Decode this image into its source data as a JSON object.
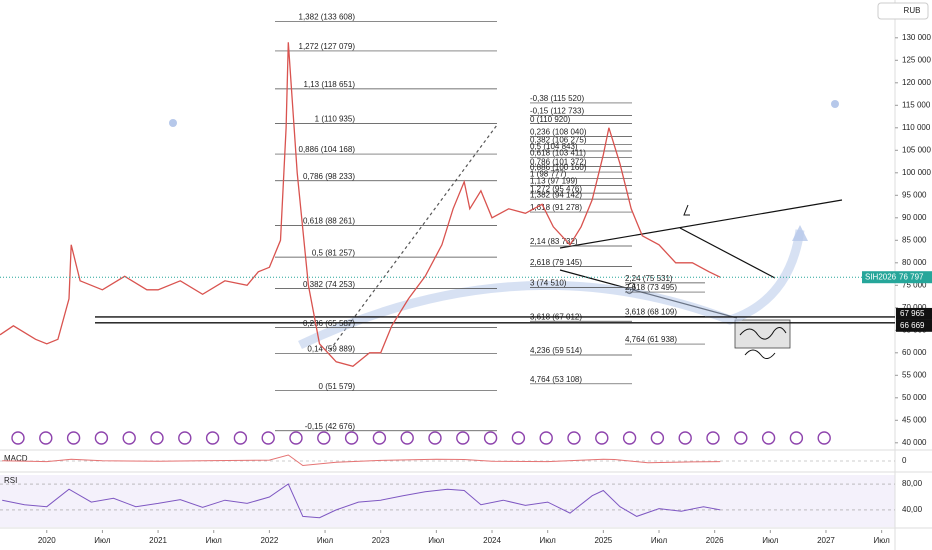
{
  "chart_data": {
    "type": "line",
    "currency": "RUB",
    "xlim": [
      2019.58,
      2027.62
    ],
    "xticks": [
      2020,
      {
        "value": 2020.5,
        "label": "Июл"
      },
      2021,
      {
        "value": 2021.5,
        "label": "Июл"
      },
      2022,
      {
        "value": 2022.5,
        "label": "Июл"
      },
      2023,
      {
        "value": 2023.5,
        "label": "Июл"
      },
      2024,
      {
        "value": 2024.5,
        "label": "Июл"
      },
      2025,
      {
        "value": 2025.5,
        "label": "Июл"
      },
      2026,
      {
        "value": 2026.5,
        "label": "Июл"
      },
      2027,
      {
        "value": 2027.5,
        "label": "Июл"
      }
    ],
    "ylim": [
      38400,
      138400
    ],
    "yticks": [
      {
        "value": 40000,
        "label": "40 000"
      },
      {
        "value": 45000,
        "label": "45 000"
      },
      {
        "value": 50000,
        "label": "50 000"
      },
      {
        "value": 55000,
        "label": "55 000"
      },
      {
        "value": 60000,
        "label": "60 000"
      },
      {
        "value": 65000,
        "label": "65 000"
      },
      {
        "value": 70000,
        "label": "70 000"
      },
      {
        "value": 75000,
        "label": "75 000"
      },
      {
        "value": 80000,
        "label": "80 000"
      },
      {
        "value": 85000,
        "label": "85 000"
      },
      {
        "value": 90000,
        "label": "90 000"
      },
      {
        "value": 95000,
        "label": "95 000"
      },
      {
        "value": 100000,
        "label": "100 000"
      },
      {
        "value": 105000,
        "label": "105 000"
      },
      {
        "value": 110000,
        "label": "110 000"
      },
      {
        "value": 115000,
        "label": "115 000"
      },
      {
        "value": 120000,
        "label": "120 000"
      },
      {
        "value": 125000,
        "label": "125 000"
      },
      {
        "value": 130000,
        "label": "130 000"
      }
    ],
    "series": [
      {
        "name": "SIH2026",
        "color": "#d9534f",
        "x": [
          2019.58,
          2019.7,
          2019.9,
          2020.0,
          2020.1,
          2020.2,
          2020.22,
          2020.3,
          2020.5,
          2020.7,
          2020.9,
          2021.0,
          2021.2,
          2021.4,
          2021.6,
          2021.8,
          2021.9,
          2022.0,
          2022.1,
          2022.15,
          2022.17,
          2022.25,
          2022.35,
          2022.45,
          2022.6,
          2022.75,
          2022.9,
          2023.0,
          2023.1,
          2023.25,
          2023.4,
          2023.55,
          2023.65,
          2023.75,
          2023.8,
          2023.9,
          2024.0,
          2024.15,
          2024.3,
          2024.45,
          2024.55,
          2024.7,
          2024.8,
          2024.9,
          2025.0,
          2025.05,
          2025.15,
          2025.25,
          2025.35,
          2025.5,
          2025.65,
          2025.8,
          2025.95,
          2026.05
        ],
        "values": [
          64000,
          66000,
          63000,
          62000,
          63000,
          72000,
          84000,
          76000,
          74000,
          77000,
          74000,
          74000,
          76000,
          73000,
          76000,
          75000,
          78000,
          79000,
          85000,
          110000,
          129000,
          100000,
          75000,
          62000,
          58000,
          57000,
          60000,
          60000,
          66000,
          72000,
          77000,
          84000,
          92000,
          98000,
          92000,
          96000,
          90000,
          92000,
          91000,
          93000,
          88000,
          84000,
          88000,
          94000,
          104000,
          110000,
          102000,
          92000,
          86000,
          84000,
          80000,
          80000,
          78000,
          76797
        ]
      }
    ],
    "last_label": "76 797",
    "levels": [
      {
        "value": 67965,
        "label": "67 965"
      },
      {
        "value": 66669,
        "label": "66 669"
      }
    ],
    "fib": [
      [
        {
          "label": "1,382 (133 608)",
          "value": 133608
        },
        {
          "label": "1,272 (127 079)",
          "value": 127079
        },
        {
          "label": "1,13 (118 651)",
          "value": 118651
        },
        {
          "label": "1 (110 935)",
          "value": 110935
        },
        {
          "label": "0,886 (104 168)",
          "value": 104168
        },
        {
          "label": "0,786 (98 233)",
          "value": 98233
        },
        {
          "label": "0,618 (88 261)",
          "value": 88261
        },
        {
          "label": "0,5 (81 257)",
          "value": 81257
        },
        {
          "label": "0,382 (74 253)",
          "value": 74253
        },
        {
          "label": "0,236 (65 587)",
          "value": 65587
        },
        {
          "label": "0,14 (59 889)",
          "value": 59889
        },
        {
          "label": "0 (51 579)",
          "value": 51579
        },
        {
          "label": "-0,15 (42 676)",
          "value": 42676
        }
      ],
      [
        {
          "label": "-0,38 (115 520)",
          "value": 115520
        },
        {
          "label": "-0,15 (112 733)",
          "value": 112733
        },
        {
          "label": "0 (110 920)",
          "value": 110920
        },
        {
          "label": "0,236 (108 040)",
          "value": 108040
        },
        {
          "label": "0,382 (106 275)",
          "value": 106275
        },
        {
          "label": "0,5 (104 843)",
          "value": 104843
        },
        {
          "label": "0,618 (103 411)",
          "value": 103411
        },
        {
          "label": "0,786 (101 372)",
          "value": 101372
        },
        {
          "label": "0,886 (100 160)",
          "value": 100160
        },
        {
          "label": "1 (98 777)",
          "value": 98777
        },
        {
          "label": "1,13 (97 199)",
          "value": 97199
        },
        {
          "label": "1,272 (95 476)",
          "value": 95476
        },
        {
          "label": "1,382 (94 142)",
          "value": 94142
        },
        {
          "label": "1,618 (91 278)",
          "value": 91278
        },
        {
          "label": "2,14 (83 732)",
          "value": 83732
        },
        {
          "label": "2,618 (79 145)",
          "value": 79145
        },
        {
          "label": "3 (74 510)",
          "value": 74510
        },
        {
          "label": "3,618 (67 012)",
          "value": 67012
        },
        {
          "label": "4,236 (59 514)",
          "value": 59514
        },
        {
          "label": "4,764 (53 108)",
          "value": 53108
        }
      ],
      [
        {
          "label": "2,24 (75 531)",
          "value": 75531
        },
        {
          "label": "2,618 (73 495)",
          "value": 73495
        },
        {
          "label": "3,618 (68 109)",
          "value": 68109
        },
        {
          "label": "4,764 (61 938)",
          "value": 61938
        }
      ]
    ],
    "macd": {
      "name": "MACD",
      "ylim": [
        -3000,
        3000
      ],
      "yticks": [
        0
      ],
      "x": [
        2019.6,
        2020.0,
        2020.22,
        2020.5,
        2021.0,
        2021.5,
        2022.0,
        2022.17,
        2022.3,
        2022.6,
        2023.0,
        2023.5,
        2023.75,
        2024.0,
        2024.5,
        2025.0,
        2025.1,
        2025.4,
        2025.8,
        2026.05
      ],
      "values": [
        100,
        -200,
        600,
        100,
        -100,
        150,
        300,
        2000,
        -1500,
        -400,
        200,
        600,
        500,
        -100,
        -200,
        600,
        500,
        -600,
        -300,
        -200
      ]
    },
    "rsi": {
      "name": "RSI",
      "ylim": [
        12,
        94
      ],
      "yticks": [
        {
          "value": 80,
          "label": "80,00"
        },
        {
          "value": 40,
          "label": "40,00"
        }
      ],
      "x": [
        2019.6,
        2019.8,
        2020.0,
        2020.2,
        2020.4,
        2020.6,
        2020.8,
        2021.0,
        2021.2,
        2021.4,
        2021.6,
        2021.8,
        2022.0,
        2022.17,
        2022.3,
        2022.45,
        2022.6,
        2022.8,
        2023.0,
        2023.2,
        2023.4,
        2023.6,
        2023.75,
        2023.9,
        2024.1,
        2024.3,
        2024.5,
        2024.7,
        2024.9,
        2025.0,
        2025.15,
        2025.3,
        2025.5,
        2025.7,
        2025.9,
        2026.05
      ],
      "values": [
        55,
        48,
        45,
        72,
        52,
        58,
        45,
        50,
        56,
        44,
        55,
        50,
        60,
        80,
        30,
        28,
        40,
        52,
        55,
        62,
        68,
        72,
        70,
        48,
        55,
        47,
        52,
        35,
        62,
        70,
        45,
        30,
        42,
        38,
        45,
        40
      ]
    }
  }
}
